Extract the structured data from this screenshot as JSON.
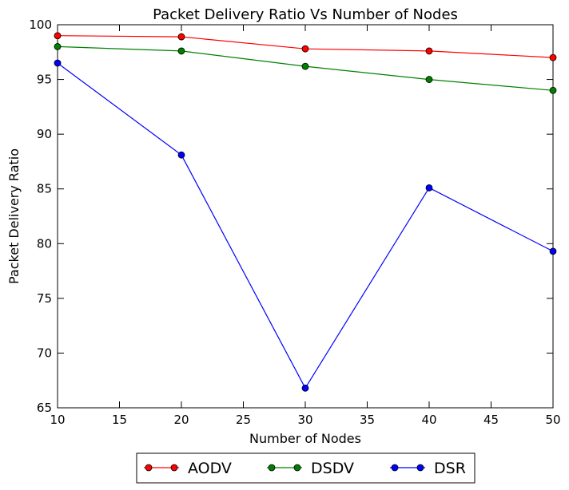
{
  "chart_data": {
    "type": "line",
    "title": "Packet Delivery Ratio Vs Number of Nodes",
    "xlabel": "Number of Nodes",
    "ylabel": "Packet Delivery Ratio",
    "xlim": [
      10,
      50
    ],
    "ylim": [
      65,
      100
    ],
    "xticks": [
      10,
      15,
      20,
      25,
      30,
      35,
      40,
      45,
      50
    ],
    "yticks": [
      65,
      70,
      75,
      80,
      85,
      90,
      95,
      100
    ],
    "grid": false,
    "legend_position": "bottom-center",
    "x": [
      10,
      20,
      30,
      40,
      50
    ],
    "series": [
      {
        "name": "AODV",
        "color": "#ff0000",
        "values": [
          99.0,
          98.9,
          97.8,
          97.6,
          97.0
        ]
      },
      {
        "name": "DSDV",
        "color": "#008000",
        "values": [
          98.0,
          97.6,
          96.2,
          95.0,
          94.0
        ]
      },
      {
        "name": "DSR",
        "color": "#0000ff",
        "values": [
          96.5,
          88.1,
          66.8,
          85.1,
          79.3
        ]
      }
    ]
  }
}
